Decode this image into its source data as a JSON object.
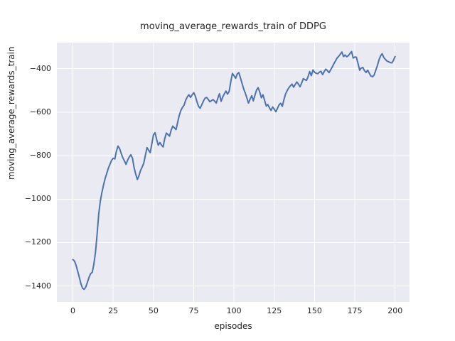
{
  "figure": {
    "title": "moving_average_rewards_train of DDPG",
    "xlabel": "episodes",
    "ylabel": "moving_average_rewards_train"
  },
  "chart_data": {
    "type": "line",
    "title": "moving_average_rewards_train of DDPG",
    "xlabel": "episodes",
    "ylabel": "moving_average_rewards_train",
    "x_ticks": [
      0,
      25,
      50,
      75,
      100,
      125,
      150,
      175,
      200
    ],
    "y_ticks": [
      -400,
      -600,
      -800,
      -1000,
      -1200,
      -1400
    ],
    "xlim": [
      -9.95,
      208.95
    ],
    "ylim": [
      -1473,
      -280
    ],
    "grid": true,
    "legend_position": "none",
    "style": {
      "figure_bg": "#ffffff",
      "plot_bg": "#eaeaf2",
      "grid_color": "#ffffff",
      "line_color": "#4c72b0",
      "text_color": "#262626",
      "line_width": 2
    },
    "series": [
      {
        "name": "moving_average_rewards_train",
        "x": [
          0,
          1,
          2,
          3,
          4,
          5,
          6,
          7,
          8,
          9,
          10,
          11,
          12,
          13,
          14,
          15,
          16,
          17,
          18,
          19,
          20,
          21,
          22,
          23,
          24,
          25,
          26,
          27,
          28,
          29,
          30,
          31,
          32,
          33,
          34,
          35,
          36,
          37,
          38,
          39,
          40,
          41,
          42,
          43,
          44,
          45,
          46,
          47,
          48,
          49,
          50,
          51,
          52,
          53,
          54,
          55,
          56,
          57,
          58,
          59,
          60,
          61,
          62,
          63,
          64,
          65,
          66,
          67,
          68,
          69,
          70,
          71,
          72,
          73,
          74,
          75,
          76,
          77,
          78,
          79,
          80,
          81,
          82,
          83,
          84,
          85,
          86,
          87,
          88,
          89,
          90,
          91,
          92,
          93,
          94,
          95,
          96,
          97,
          98,
          99,
          100,
          101,
          102,
          103,
          104,
          105,
          106,
          107,
          108,
          109,
          110,
          111,
          112,
          113,
          114,
          115,
          116,
          117,
          118,
          119,
          120,
          121,
          122,
          123,
          124,
          125,
          126,
          127,
          128,
          129,
          130,
          131,
          132,
          133,
          134,
          135,
          136,
          137,
          138,
          139,
          140,
          141,
          142,
          143,
          144,
          145,
          146,
          147,
          148,
          149,
          150,
          151,
          152,
          153,
          154,
          155,
          156,
          157,
          158,
          159,
          160,
          161,
          162,
          163,
          164,
          165,
          166,
          167,
          168,
          169,
          170,
          171,
          172,
          173,
          174,
          175,
          176,
          177,
          178,
          179,
          180,
          181,
          182,
          183,
          184,
          185,
          186,
          187,
          188,
          189,
          190,
          191,
          192,
          193,
          194,
          195,
          196,
          197,
          198,
          199,
          200
        ],
        "y": [
          -1278,
          -1285,
          -1305,
          -1332,
          -1360,
          -1390,
          -1410,
          -1415,
          -1404,
          -1383,
          -1360,
          -1343,
          -1337,
          -1300,
          -1245,
          -1165,
          -1070,
          -1010,
          -970,
          -935,
          -905,
          -882,
          -858,
          -840,
          -822,
          -812,
          -815,
          -780,
          -756,
          -768,
          -790,
          -810,
          -825,
          -840,
          -820,
          -806,
          -796,
          -812,
          -855,
          -885,
          -910,
          -893,
          -868,
          -852,
          -835,
          -798,
          -763,
          -775,
          -786,
          -745,
          -705,
          -694,
          -726,
          -752,
          -740,
          -752,
          -760,
          -722,
          -696,
          -703,
          -710,
          -682,
          -664,
          -672,
          -680,
          -648,
          -615,
          -592,
          -578,
          -568,
          -545,
          -530,
          -520,
          -532,
          -521,
          -510,
          -526,
          -552,
          -573,
          -582,
          -566,
          -549,
          -536,
          -532,
          -541,
          -552,
          -547,
          -542,
          -549,
          -558,
          -535,
          -515,
          -550,
          -530,
          -516,
          -503,
          -517,
          -505,
          -460,
          -422,
          -432,
          -444,
          -424,
          -418,
          -442,
          -468,
          -492,
          -512,
          -535,
          -558,
          -540,
          -524,
          -548,
          -522,
          -498,
          -487,
          -508,
          -534,
          -520,
          -546,
          -572,
          -565,
          -580,
          -592,
          -576,
          -586,
          -598,
          -582,
          -566,
          -559,
          -573,
          -542,
          -517,
          -501,
          -488,
          -479,
          -471,
          -485,
          -473,
          -461,
          -471,
          -483,
          -466,
          -446,
          -450,
          -454,
          -436,
          -413,
          -432,
          -406,
          -416,
          -421,
          -423,
          -416,
          -412,
          -427,
          -413,
          -402,
          -409,
          -418,
          -405,
          -392,
          -377,
          -364,
          -351,
          -343,
          -333,
          -323,
          -344,
          -337,
          -345,
          -340,
          -330,
          -321,
          -351,
          -346,
          -347,
          -376,
          -407,
          -397,
          -394,
          -409,
          -417,
          -407,
          -421,
          -434,
          -437,
          -429,
          -407,
          -386,
          -359,
          -341,
          -331,
          -349,
          -357,
          -365,
          -368,
          -372,
          -373,
          -361,
          -344
        ]
      }
    ]
  }
}
